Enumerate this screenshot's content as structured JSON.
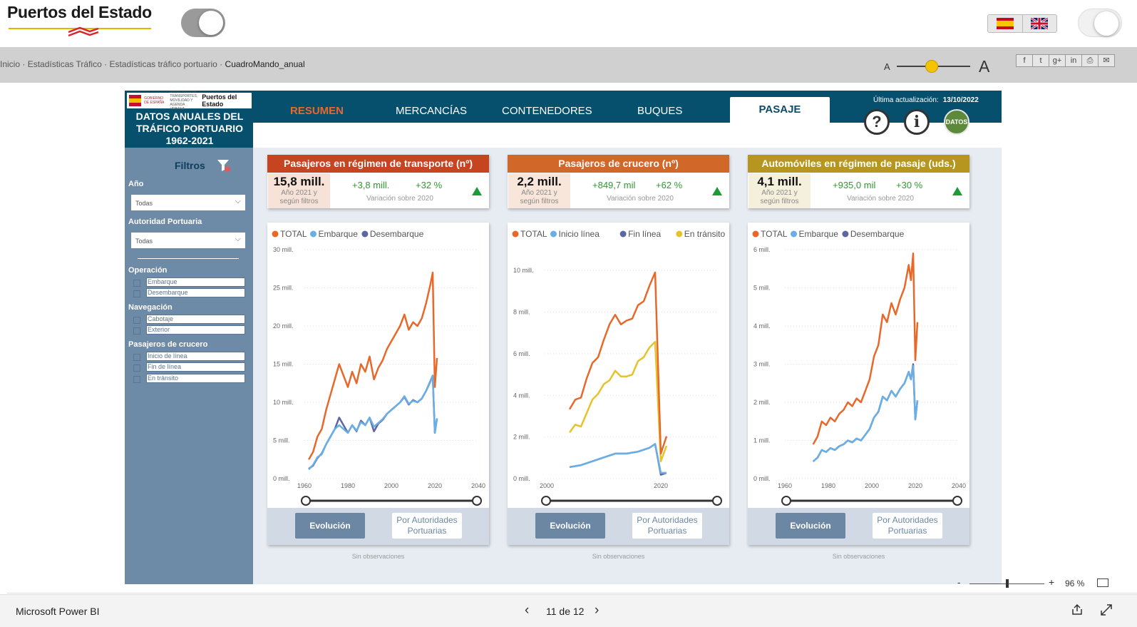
{
  "site": {
    "logo_text": "Puertos del Estado",
    "breadcrumb": [
      "Inicio",
      "Estadísticas Tráfico",
      "Estadísticas tráfico portuario"
    ],
    "breadcrumb_sep": "·",
    "breadcrumb_current": "CuadroMando_anual",
    "font_small": "A",
    "font_big": "A",
    "font_scale_level": 0.4,
    "share_icons": [
      "facebook-icon",
      "twitter-icon",
      "google-plus-icon",
      "linkedin-icon",
      "print-icon",
      "email-icon"
    ],
    "share_glyphs": [
      "f",
      "t",
      "g+",
      "in",
      "⎙",
      "✉"
    ],
    "lang_icons": [
      "spanish-flag-icon",
      "uk-flag-icon"
    ]
  },
  "report": {
    "brand_top": "Puertos del Estado",
    "brand_gob": "GOBIERNO DE ESPAÑA",
    "brand_min": "MINISTERIO DE TRANSPORTES, MOVILIDAD Y AGENDA URBANA",
    "title_lines": [
      "DATOS ANUALES DEL",
      "TRÁFICO PORTUARIO",
      "1962-2021"
    ],
    "tabs": [
      "RESUMEN",
      "MERCANCÍAS",
      "CONTENEDORES",
      "BUQUES",
      "PASAJE"
    ],
    "active_tab": "PASAJE",
    "last_update_label": "Última actualización:",
    "last_update_date": "13/10/2022",
    "help_glyph": "?",
    "info_glyph": "i",
    "datos_label": "DATOS",
    "colors": {
      "header": "#06506e",
      "resumen_tab": "#e8682a",
      "card1": "#c6441f",
      "card2": "#d2672a",
      "card3": "#b7961f",
      "total": "#e8682a",
      "series_light": "#6aaee6",
      "series_dark": "#5c67a1",
      "series_yellow": "#e6c22b",
      "up_green": "#1f9a3a"
    }
  },
  "filters": {
    "title": "Filtros",
    "year_label": "Año",
    "year_value": "Todas",
    "authority_label": "Autoridad Portuaria",
    "authority_value": "Todas",
    "operation_label": "Operación",
    "operation_options": [
      "Embarque",
      "Desembarque"
    ],
    "navigation_label": "Navegación",
    "navigation_options": [
      "Cabotaje",
      "Exterior"
    ],
    "cruise_label": "Pasajeros de crucero",
    "cruise_options": [
      "Inicio de línea",
      "Fin de línea",
      "En tránsito"
    ]
  },
  "cards": [
    {
      "title": "Pasajeros en régimen de transporte (nº)",
      "value": "15,8 mill.",
      "sub": [
        "Año 2021 y",
        "según filtros"
      ],
      "diff_abs": "+3,8 mill.",
      "diff_pct": "+32 %",
      "variation_label": "Variación sobre 2020",
      "btn_evolution": "Evolución",
      "btn_authorities": [
        "Por Autoridades",
        "Portuarias"
      ],
      "observations": "Sin observaciones"
    },
    {
      "title": "Pasajeros de crucero (nº)",
      "value": "2,2 mill.",
      "sub": [
        "Año 2021 y",
        "según filtros"
      ],
      "diff_abs": "+849,7 mil",
      "diff_pct": "+62 %",
      "variation_label": "Variación sobre 2020",
      "btn_evolution": "Evolución",
      "btn_authorities": [
        "Por Autoridades",
        "Portuarias"
      ],
      "observations": "Sin observaciones"
    },
    {
      "title": "Automóviles en régimen de pasaje (uds.)",
      "value": "4,1 mill.",
      "sub": [
        "Año 2021 y",
        "según filtros"
      ],
      "diff_abs": "+935,0 mil",
      "diff_pct": "+30 %",
      "variation_label": "Variación sobre 2020",
      "btn_evolution": "Evolución",
      "btn_authorities": [
        "Por Autoridades",
        "Portuarias"
      ],
      "observations": "Sin observaciones"
    }
  ],
  "chart_data": [
    {
      "type": "line",
      "ylim": [
        0,
        30
      ],
      "xlim": [
        1960,
        2040
      ],
      "yticks": [
        "0 mill.",
        "5 mill.",
        "10 mill.",
        "15 mill.",
        "20 mill.",
        "25 mill.",
        "30 mill."
      ],
      "xticks": [
        "1960",
        "1980",
        "2000",
        "2020",
        "2040"
      ],
      "legend": "top-left",
      "series": [
        {
          "name": "TOTAL",
          "color": "#e8682a",
          "x": [
            1962,
            1964,
            1966,
            1968,
            1970,
            1972,
            1974,
            1976,
            1978,
            1980,
            1982,
            1984,
            1986,
            1988,
            1990,
            1992,
            1994,
            1996,
            1998,
            2000,
            2002,
            2004,
            2006,
            2008,
            2010,
            2012,
            2014,
            2016,
            2018,
            2019,
            2020,
            2021
          ],
          "y": [
            2.5,
            3.5,
            5.5,
            6.5,
            9.0,
            11.0,
            13.0,
            15.0,
            13.5,
            12.0,
            14.0,
            12.5,
            15.0,
            14.0,
            16.0,
            13.0,
            14.5,
            15.5,
            17.0,
            18.0,
            19.0,
            20.0,
            21.5,
            19.5,
            20.5,
            20.0,
            21.0,
            23.0,
            25.5,
            27.0,
            12.0,
            15.8
          ]
        },
        {
          "name": "Embarque",
          "color": "#6aaee6",
          "x": [
            1962,
            1964,
            1966,
            1968,
            1970,
            1972,
            1974,
            1976,
            1978,
            1980,
            1982,
            1984,
            1986,
            1988,
            1990,
            1992,
            1994,
            1996,
            1998,
            2000,
            2002,
            2004,
            2006,
            2008,
            2010,
            2012,
            2014,
            2016,
            2018,
            2019,
            2020,
            2021
          ],
          "y": [
            1.2,
            1.8,
            2.8,
            3.2,
            4.5,
            5.5,
            6.5,
            7.0,
            6.5,
            6.0,
            7.0,
            6.3,
            7.4,
            7.0,
            8.0,
            6.8,
            7.3,
            7.8,
            8.5,
            9.0,
            9.5,
            10.0,
            10.8,
            9.8,
            10.2,
            10.0,
            10.5,
            11.5,
            12.7,
            13.5,
            6.0,
            7.9
          ]
        },
        {
          "name": "Desembarque",
          "color": "#5c67a1",
          "x": [
            1962,
            1964,
            1966,
            1968,
            1970,
            1972,
            1974,
            1976,
            1978,
            1980,
            1982,
            1984,
            1986,
            1988,
            1990,
            1992,
            1994,
            1996,
            1998,
            2000,
            2002,
            2004,
            2006,
            2008,
            2010,
            2012,
            2014,
            2016,
            2018,
            2019,
            2020,
            2021
          ],
          "y": [
            1.3,
            1.7,
            2.7,
            3.3,
            4.5,
            5.5,
            6.5,
            8.0,
            7.0,
            6.0,
            7.0,
            6.2,
            7.6,
            7.0,
            8.0,
            6.2,
            7.2,
            7.7,
            8.5,
            9.0,
            9.5,
            10.0,
            10.7,
            9.7,
            10.3,
            10.0,
            10.5,
            11.5,
            12.8,
            13.5,
            6.0,
            7.9
          ]
        }
      ]
    },
    {
      "type": "line",
      "ylim": [
        0,
        11
      ],
      "xlim": [
        2000,
        2021
      ],
      "yticks": [
        "0 mill.",
        "2 mill.",
        "4 mill.",
        "6 mill.",
        "8 mill.",
        "10 mill."
      ],
      "xticks": [
        "2000",
        "2020"
      ],
      "legend": "top-left",
      "series": [
        {
          "name": "TOTAL",
          "color": "#e8682a",
          "x": [
            2004,
            2005,
            2006,
            2007,
            2008,
            2009,
            2010,
            2011,
            2012,
            2013,
            2014,
            2015,
            2016,
            2017,
            2018,
            2019,
            2020,
            2021
          ],
          "y": [
            3.6,
            4.1,
            4.2,
            5.2,
            6.0,
            6.3,
            7.2,
            8.0,
            8.5,
            8.0,
            8.2,
            8.3,
            9.0,
            9.2,
            10.0,
            10.7,
            1.3,
            2.2
          ]
        },
        {
          "name": "Inicio línea",
          "color": "#6aaee6",
          "x": [
            2004,
            2006,
            2008,
            2010,
            2012,
            2014,
            2016,
            2018,
            2019,
            2020,
            2021
          ],
          "y": [
            0.6,
            0.7,
            0.9,
            1.1,
            1.3,
            1.3,
            1.4,
            1.6,
            1.8,
            0.3,
            0.3
          ]
        },
        {
          "name": "Fin línea",
          "color": "#5c67a1",
          "x": [
            2004,
            2006,
            2008,
            2010,
            2012,
            2014,
            2016,
            2018,
            2019,
            2020,
            2021
          ],
          "y": [
            0.6,
            0.7,
            0.9,
            1.1,
            1.3,
            1.3,
            1.4,
            1.6,
            1.8,
            0.2,
            0.3
          ]
        },
        {
          "name": "En tránsito",
          "color": "#e6c22b",
          "x": [
            2004,
            2005,
            2006,
            2007,
            2008,
            2009,
            2010,
            2011,
            2012,
            2013,
            2014,
            2015,
            2016,
            2017,
            2018,
            2019,
            2020,
            2021
          ],
          "y": [
            2.4,
            2.8,
            2.7,
            3.4,
            4.1,
            4.4,
            4.9,
            5.1,
            5.6,
            5.3,
            5.3,
            5.4,
            6.1,
            6.3,
            6.8,
            7.1,
            0.9,
            1.7
          ]
        }
      ]
    },
    {
      "type": "line",
      "ylim": [
        0,
        6
      ],
      "xlim": [
        1960,
        2040
      ],
      "yticks": [
        "0 mill.",
        "1 mill.",
        "2 mill.",
        "3 mill.",
        "4 mill.",
        "5 mill.",
        "6 mill."
      ],
      "xticks": [
        "1960",
        "1980",
        "2000",
        "2020",
        "2040"
      ],
      "legend": "top-left",
      "series": [
        {
          "name": "TOTAL",
          "color": "#e8682a",
          "x": [
            1973,
            1975,
            1977,
            1979,
            1981,
            1983,
            1985,
            1987,
            1989,
            1991,
            1993,
            1995,
            1997,
            1999,
            2001,
            2003,
            2005,
            2007,
            2009,
            2011,
            2013,
            2015,
            2017,
            2018,
            2019,
            2020,
            2021
          ],
          "y": [
            0.9,
            1.1,
            1.5,
            1.4,
            1.6,
            1.5,
            1.7,
            1.8,
            2.0,
            1.9,
            2.1,
            2.0,
            2.3,
            2.6,
            3.2,
            3.5,
            4.3,
            4.1,
            4.6,
            4.3,
            4.7,
            5.0,
            5.6,
            5.2,
            5.9,
            3.1,
            4.1
          ]
        },
        {
          "name": "Embarque",
          "color": "#6aaee6",
          "x": [
            1973,
            1975,
            1977,
            1979,
            1981,
            1983,
            1985,
            1987,
            1989,
            1991,
            1993,
            1995,
            1997,
            1999,
            2001,
            2003,
            2005,
            2007,
            2009,
            2011,
            2013,
            2015,
            2017,
            2018,
            2019,
            2020,
            2021
          ],
          "y": [
            0.45,
            0.55,
            0.75,
            0.7,
            0.8,
            0.75,
            0.85,
            0.9,
            1.0,
            0.95,
            1.05,
            1.0,
            1.15,
            1.3,
            1.6,
            1.75,
            2.15,
            2.05,
            2.3,
            2.15,
            2.35,
            2.5,
            2.8,
            2.6,
            2.95,
            1.55,
            2.05
          ]
        },
        {
          "name": "Desembarque",
          "color": "#5c67a1",
          "x": [
            1973,
            1975,
            1977,
            1979,
            1981,
            1983,
            1985,
            1987,
            1989,
            1991,
            1993,
            1995,
            1997,
            1999,
            2001,
            2003,
            2005,
            2007,
            2009,
            2011,
            2013,
            2015,
            2017,
            2018,
            2019,
            2020,
            2021
          ],
          "y": [
            0.45,
            0.55,
            0.75,
            0.7,
            0.8,
            0.75,
            0.85,
            0.9,
            1.0,
            0.95,
            1.05,
            1.0,
            1.15,
            1.3,
            1.6,
            1.75,
            2.15,
            2.05,
            2.3,
            2.15,
            2.35,
            2.5,
            2.8,
            2.6,
            3.0,
            1.55,
            2.05
          ]
        }
      ]
    }
  ],
  "powerbi": {
    "brand": "Microsoft Power BI",
    "pager": "11 de 12",
    "zoom_minus": "-",
    "zoom_plus": "+",
    "zoom_pct": "96 %",
    "zoom_level": 0.5
  }
}
